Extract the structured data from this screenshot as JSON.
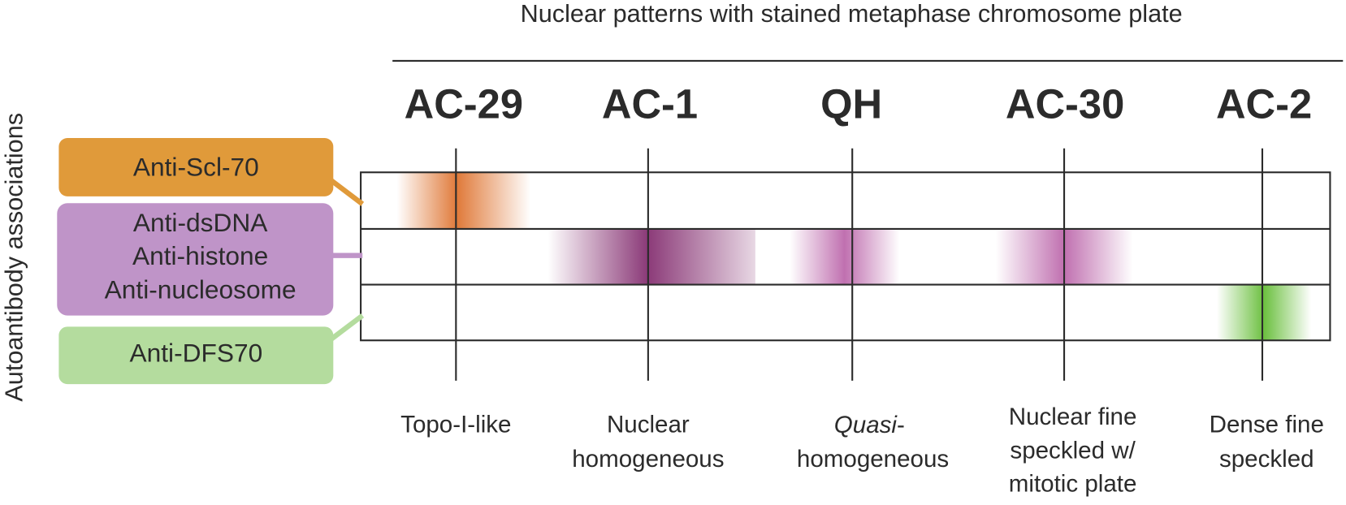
{
  "title": "Nuclear patterns with stained metaphase chromosome plate",
  "side_label": "Autoantibody associations",
  "antibodies": [
    {
      "lines": [
        "Anti-Scl-70"
      ]
    },
    {
      "lines": [
        "Anti-dsDNA",
        "Anti-histone",
        "Anti-nucleosome"
      ]
    },
    {
      "lines": [
        "Anti-DFS70"
      ]
    }
  ],
  "patterns": [
    {
      "code": "AC-29",
      "description": [
        [
          "Topo-I-like"
        ]
      ]
    },
    {
      "code": "AC-1",
      "description": [
        [
          "Nuclear"
        ],
        [
          "homogeneous"
        ]
      ]
    },
    {
      "code": "QH",
      "description": [
        [
          "Quasi",
          "-"
        ],
        [
          "homogeneous"
        ]
      ]
    },
    {
      "code": "AC-30",
      "description": [
        [
          "Nuclear fine"
        ],
        [
          "speckled w/"
        ],
        [
          "mitotic plate"
        ]
      ]
    },
    {
      "code": "AC-2",
      "description": [
        [
          "Dense fine"
        ],
        [
          "speckled"
        ]
      ]
    }
  ]
}
